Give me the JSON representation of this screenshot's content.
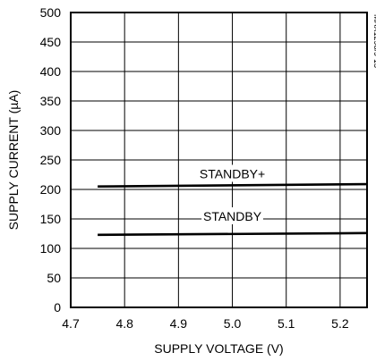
{
  "chart_data": {
    "type": "line",
    "title": "",
    "xlabel": "SUPPLY VOLTAGE (V)",
    "ylabel": "SUPPLY CURRENT (µA)",
    "xlim": [
      4.7,
      5.25
    ],
    "ylim": [
      0,
      500
    ],
    "xticks": [
      4.7,
      4.8,
      4.9,
      5.0,
      5.1,
      5.2
    ],
    "xtick_labels": [
      "4.7",
      "4.8",
      "4.9",
      "5.0",
      "5.1",
      "5.2"
    ],
    "yticks": [
      0,
      50,
      100,
      150,
      200,
      250,
      300,
      350,
      400,
      450,
      500
    ],
    "ytick_labels": [
      "0",
      "50",
      "100",
      "150",
      "200",
      "250",
      "300",
      "350",
      "400",
      "450",
      "500"
    ],
    "grid": true,
    "series": [
      {
        "name": "STANDBY+",
        "x": [
          4.75,
          5.25
        ],
        "y": [
          205,
          209
        ],
        "label_x": 5.0,
        "label_y": 222
      },
      {
        "name": "STANDBY",
        "x": [
          4.75,
          5.25
        ],
        "y": [
          123,
          126
        ],
        "label_x": 5.0,
        "label_y": 150
      }
    ],
    "figure_id": "MAX1298/9-13",
    "colors": {
      "line": "#000000",
      "grid": "#000000",
      "background": "#ffffff"
    }
  }
}
